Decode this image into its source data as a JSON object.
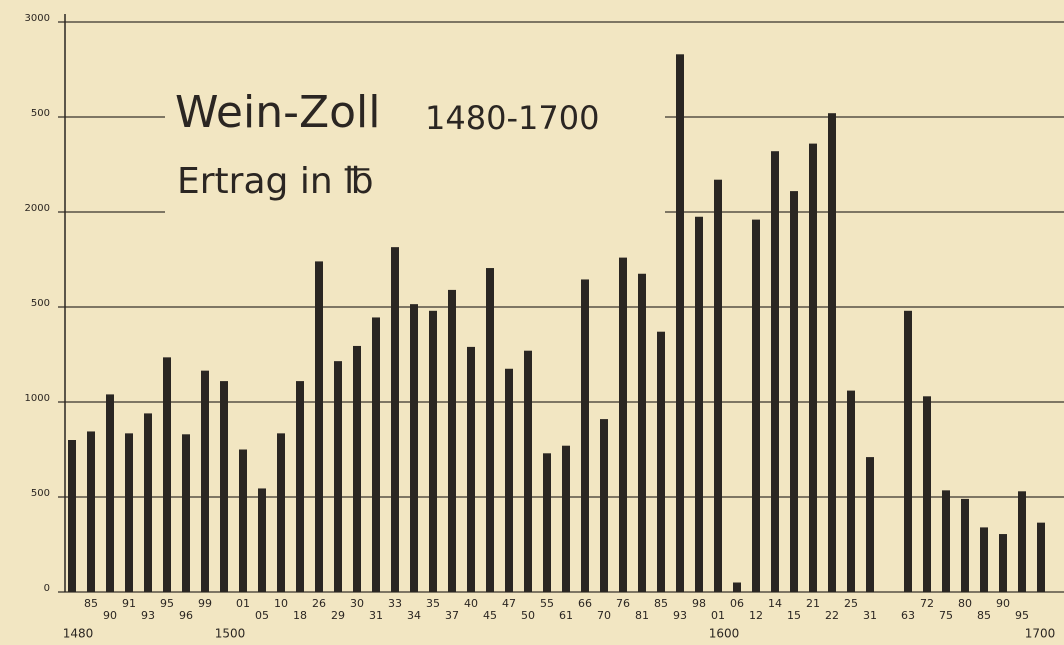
{
  "chart_data": {
    "type": "bar",
    "title": "Wein-Zoll",
    "title_years": "1480-1700",
    "subtitle": "Ertrag in ℔",
    "categories": [
      null,
      "85",
      "90",
      "91",
      "93",
      "95",
      "96",
      "99",
      null,
      "01",
      "05",
      "10",
      "18",
      "26",
      "29",
      "30",
      "31",
      "33",
      "34",
      "35",
      "37",
      "40",
      "45",
      "47",
      "50",
      "55",
      "61",
      "66",
      "70",
      "76",
      "81",
      "85",
      "93",
      "98",
      "01",
      "06",
      "12",
      "14",
      "15",
      "21",
      "22",
      "25",
      "31",
      null,
      "63",
      "72",
      "75",
      "80",
      "85",
      "90",
      "95",
      null
    ],
    "values": [
      800,
      845,
      1040,
      835,
      940,
      1235,
      830,
      1165,
      1110,
      750,
      545,
      835,
      1110,
      1740,
      1215,
      1295,
      1445,
      1815,
      1515,
      1480,
      1590,
      1290,
      1705,
      1175,
      1270,
      730,
      770,
      1645,
      910,
      1760,
      1675,
      1370,
      2830,
      1975,
      2170,
      50,
      1960,
      2320,
      2110,
      2360,
      2520,
      1060,
      710,
      null,
      1480,
      1030,
      535,
      490,
      340,
      305,
      530,
      365
    ],
    "year_labels": [
      "1480",
      "1500",
      "1600",
      "1700"
    ],
    "color": "#2a2622",
    "ylim": [
      0,
      3000
    ],
    "yticks": [
      0,
      500,
      1000,
      {
        "value": 1500,
        "label": "500"
      },
      2000,
      {
        "value": 2500,
        "label": "500"
      },
      3000
    ],
    "grid": true
  }
}
